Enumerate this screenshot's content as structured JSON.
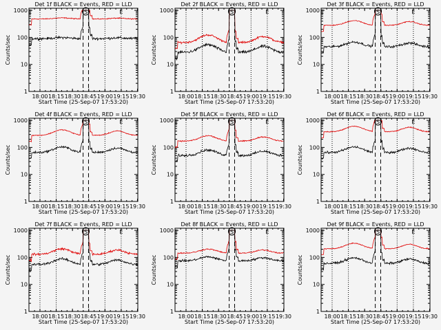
{
  "colors": {
    "events": "#000000",
    "lld": "#e00000",
    "background": "#f4f4f4",
    "axis": "#000000"
  },
  "chart_data": {
    "type": "line",
    "layout": "3x3 grid of panels",
    "shared": {
      "ylabel": "Counts/sec",
      "xlabel": "Start Time (25-Sep-07 17:53:20)",
      "y_scale": "log",
      "ylim": [
        1,
        1200
      ],
      "y_ticks": [
        "1",
        "10",
        "100",
        "1000"
      ],
      "x_range_min": [
        -3.5,
        97
      ],
      "x_ticks": [
        {
          "t": 6.67,
          "label": "18:00"
        },
        {
          "t": 21.67,
          "label": "18:15"
        },
        {
          "t": 36.67,
          "label": "18:30"
        },
        {
          "t": 51.67,
          "label": "18:45"
        },
        {
          "t": 66.67,
          "label": "19:00"
        },
        {
          "t": 81.67,
          "label": "19:15"
        },
        {
          "t": 96.67,
          "label": "19:30"
        }
      ],
      "dotted_vlines_min": [
        6.67,
        21.67,
        66.67,
        81.67
      ],
      "dashed_vlines_min": [
        46.5,
        51.5
      ],
      "markers": [
        {
          "text": "E",
          "t": -2.5
        },
        {
          "text": "S",
          "t": 49
        },
        {
          "text": "E",
          "t": 81.67
        }
      ],
      "spike_window_min": [
        46.5,
        51.5
      ],
      "spike_value": 1000
    },
    "panels": [
      {
        "title": "Det 1f BLACK = Events, RED = LLD",
        "lld": 480,
        "events": 90,
        "bump": 1.1,
        "lld_amp": 0.06,
        "ev_amp": 0.15
      },
      {
        "title": "Det 2f BLACK = Events, RED = LLD",
        "lld": 65,
        "events": 28,
        "bump": 1.9,
        "lld_amp": 0.12,
        "ev_amp": 0.18
      },
      {
        "title": "Det 3f BLACK = Events, RED = LLD",
        "lld": 280,
        "events": 45,
        "bump": 1.5,
        "lld_amp": 0.06,
        "ev_amp": 0.15
      },
      {
        "title": "Det 4f BLACK = Events, RED = LLD",
        "lld": 280,
        "events": 65,
        "bump": 1.6,
        "lld_amp": 0.06,
        "ev_amp": 0.14
      },
      {
        "title": "Det 5f BLACK = Events, RED = LLD",
        "lld": 170,
        "events": 50,
        "bump": 1.6,
        "lld_amp": 0.07,
        "ev_amp": 0.15
      },
      {
        "title": "Det 6f BLACK = Events, RED = LLD",
        "lld": 380,
        "events": 65,
        "bump": 1.6,
        "lld_amp": 0.06,
        "ev_amp": 0.14
      },
      {
        "title": "Det 7f BLACK = Events, RED = LLD",
        "lld": 130,
        "events": 55,
        "bump": 1.6,
        "lld_amp": 0.13,
        "ev_amp": 0.15
      },
      {
        "title": "Det 8f BLACK = Events, RED = LLD",
        "lld": 145,
        "events": 75,
        "bump": 1.4,
        "lld_amp": 0.08,
        "ev_amp": 0.13
      },
      {
        "title": "Det 9f BLACK = Events, RED = LLD",
        "lld": 210,
        "events": 60,
        "bump": 1.6,
        "lld_amp": 0.06,
        "ev_amp": 0.14
      }
    ]
  }
}
